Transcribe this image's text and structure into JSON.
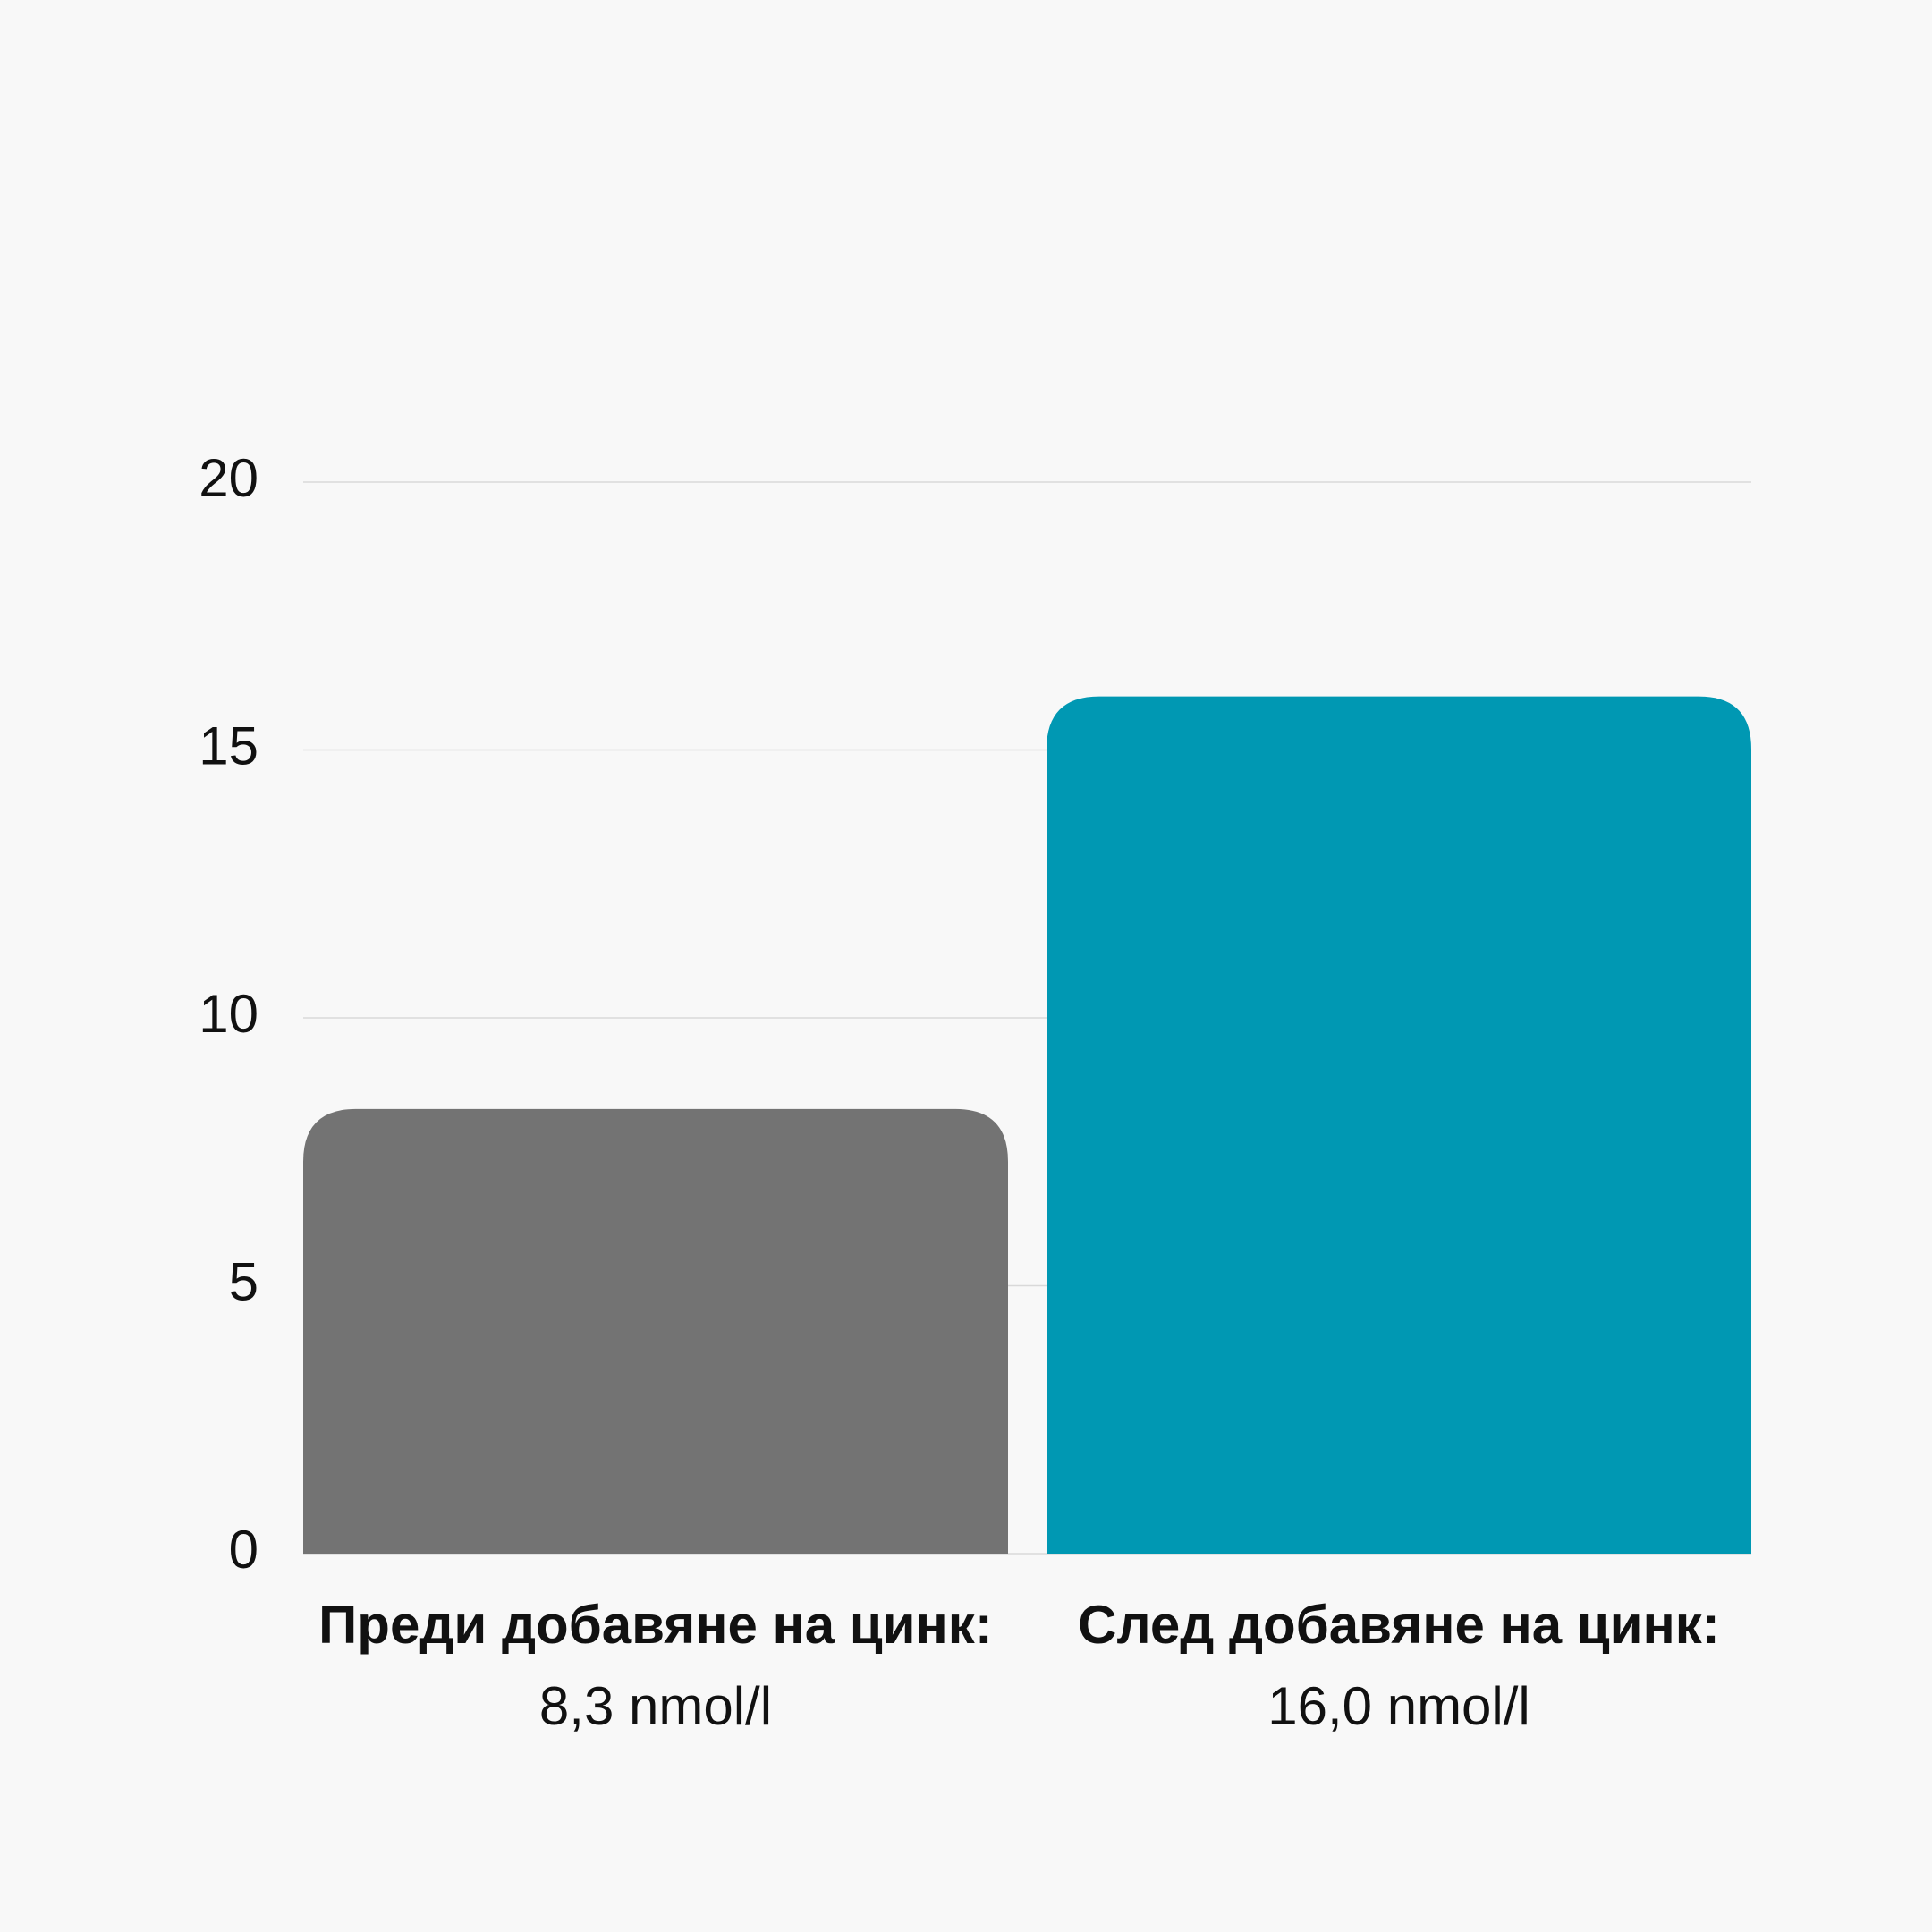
{
  "chart_data": {
    "type": "bar",
    "categories": [
      "Преди добавяне на цинк:",
      "След добавяне на цинк:"
    ],
    "values": [
      8.3,
      16.0
    ],
    "value_labels": [
      "8,3 nmol/l",
      "16,0 nmol/l"
    ],
    "colors": [
      "#737373",
      "#0098b3"
    ],
    "ylim": [
      0,
      20
    ],
    "yticks": [
      0,
      5,
      10,
      15,
      20
    ],
    "grid": true
  }
}
